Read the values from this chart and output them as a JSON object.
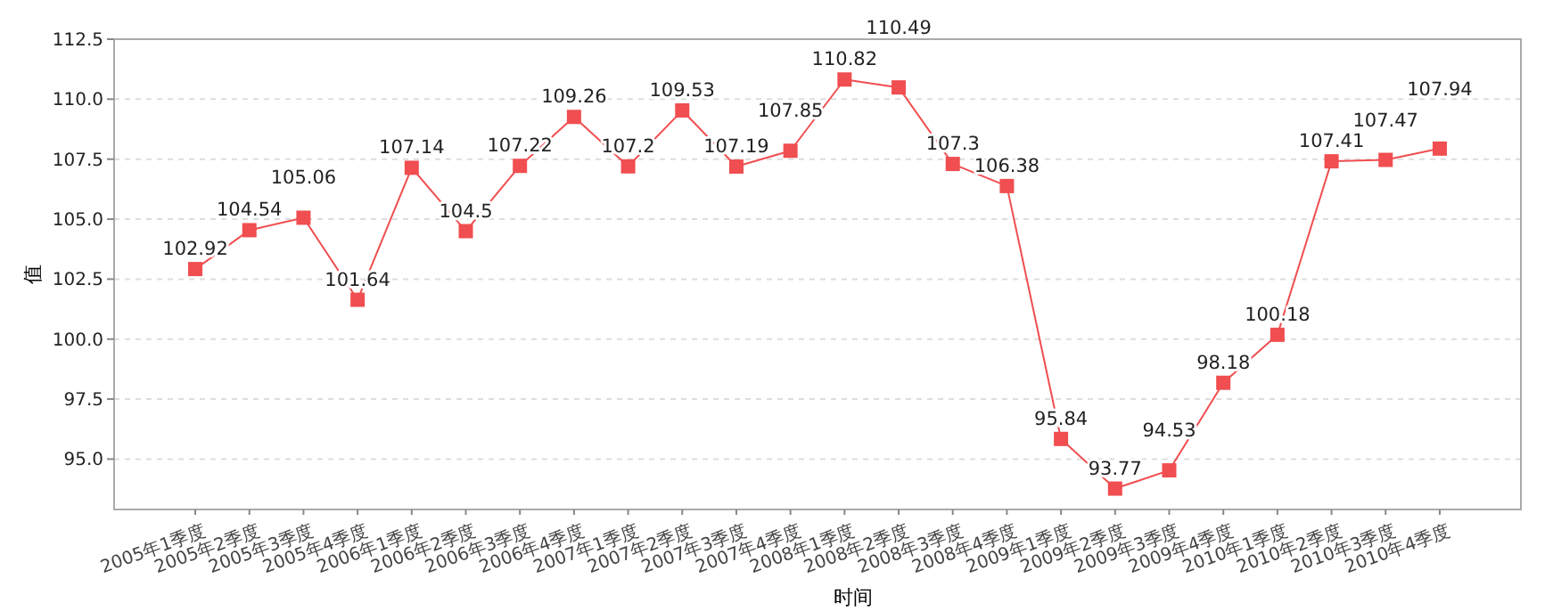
{
  "chart_data": {
    "type": "line",
    "xlabel": "时间",
    "ylabel": "值",
    "categories": [
      "2005年1季度",
      "2005年2季度",
      "2005年3季度",
      "2005年4季度",
      "2006年1季度",
      "2006年2季度",
      "2006年3季度",
      "2006年4季度",
      "2007年1季度",
      "2007年2季度",
      "2007年3季度",
      "2007年4季度",
      "2008年1季度",
      "2008年2季度",
      "2008年3季度",
      "2008年4季度",
      "2009年1季度",
      "2009年2季度",
      "2009年3季度",
      "2009年4季度",
      "2010年1季度",
      "2010年2季度",
      "2010年3季度",
      "2010年4季度"
    ],
    "series": [
      {
        "color": "#f04e50",
        "values": [
          102.92,
          104.54,
          105.06,
          101.64,
          107.14,
          104.5,
          107.22,
          109.26,
          107.2,
          109.53,
          107.19,
          107.85,
          110.82,
          110.49,
          107.3,
          106.38,
          95.84,
          93.77,
          94.53,
          98.18,
          100.18,
          107.41,
          107.47,
          107.94
        ]
      }
    ],
    "ylim": [
      92.9,
      112.5
    ],
    "yticks": [
      {
        "value": 95,
        "label": "95.0"
      },
      {
        "value": 97.5,
        "label": "97.5"
      },
      {
        "value": 100,
        "label": "100.0"
      },
      {
        "value": 102.5,
        "label": "102.5"
      },
      {
        "value": 105,
        "label": "105.0"
      },
      {
        "value": 107.5,
        "label": "107.5"
      },
      {
        "value": 110,
        "label": "110.0"
      },
      {
        "value": 112.5,
        "label": "112.5"
      }
    ],
    "grid": "y",
    "marker": "square",
    "line_style": "solid",
    "data_labels": true
  }
}
